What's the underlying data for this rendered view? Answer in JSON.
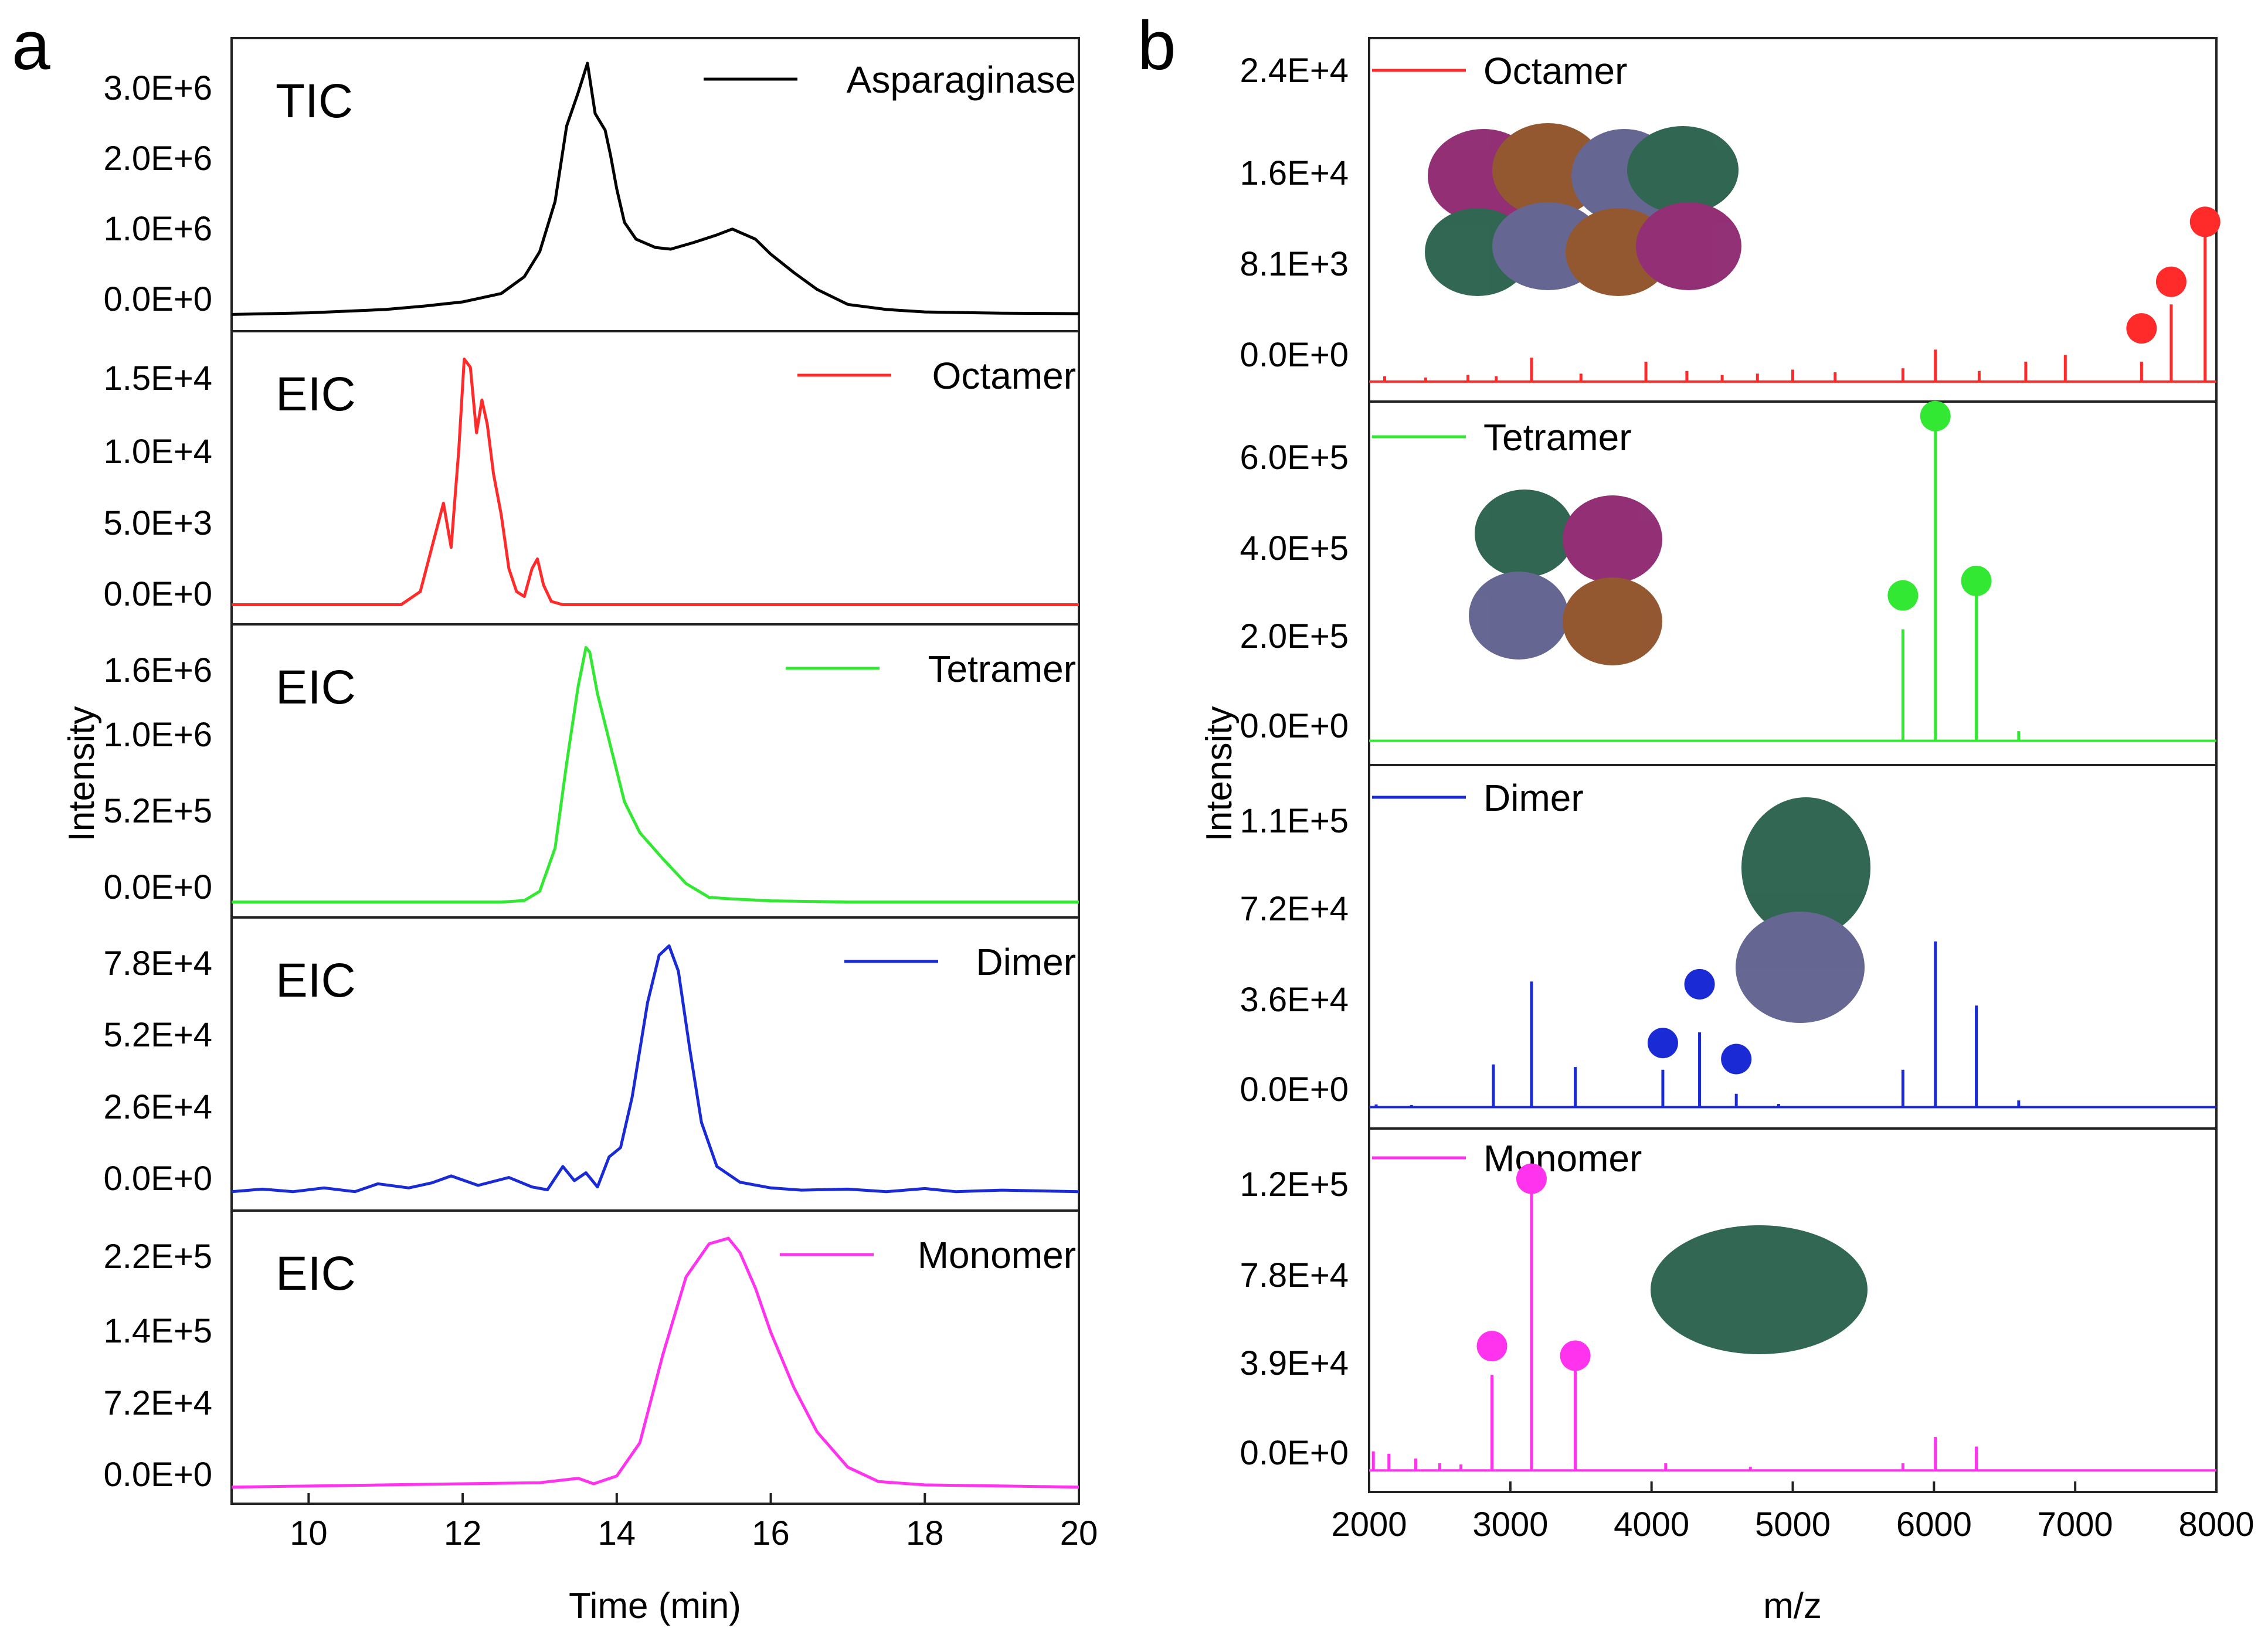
{
  "panels": [
    {
      "letter": "a",
      "x_axis": {
        "label": "Time (min)",
        "range": [
          9,
          20
        ],
        "ticks": [
          "10",
          "12",
          "14",
          "16",
          "18",
          "20"
        ],
        "tick_values": [
          10,
          12,
          14,
          16,
          18,
          20
        ]
      },
      "y_axis": {
        "label": "Intensity"
      },
      "subplots": [
        {
          "trace_label": "TIC",
          "legend": "Asparaginase",
          "color": "#000000",
          "yticks": [
            "3.0E+6",
            "2.0E+6",
            "1.0E+6",
            "0.0E+0"
          ]
        },
        {
          "trace_label": "EIC",
          "legend": "Octamer",
          "color": "#ff2a2a",
          "yticks": [
            "1.5E+4",
            "1.0E+4",
            "5.0E+3",
            "0.0E+0"
          ]
        },
        {
          "trace_label": "EIC",
          "legend": "Tetramer",
          "color": "#33e833",
          "yticks": [
            "1.6E+6",
            "1.0E+6",
            "5.2E+5",
            "0.0E+0"
          ]
        },
        {
          "trace_label": "EIC",
          "legend": "Dimer",
          "color": "#1a2bd6",
          "yticks": [
            "7.8E+4",
            "5.2E+4",
            "2.6E+4",
            "0.0E+0"
          ]
        },
        {
          "trace_label": "EIC",
          "legend": "Monomer",
          "color": "#ff33ee",
          "yticks": [
            "2.2E+5",
            "1.4E+5",
            "7.2E+4",
            "0.0E+0"
          ]
        }
      ]
    },
    {
      "letter": "b",
      "x_axis": {
        "label": "m/z",
        "range": [
          2000,
          8000
        ],
        "ticks": [
          "2000",
          "3000",
          "4000",
          "5000",
          "6000",
          "7000",
          "8000"
        ],
        "tick_values": [
          2000,
          3000,
          4000,
          5000,
          6000,
          7000,
          8000
        ]
      },
      "y_axis": {
        "label": "Intensity"
      },
      "subplots": [
        {
          "legend": "Octamer",
          "color": "#ff2a2a",
          "yticks": [
            "2.4E+4",
            "1.6E+4",
            "8.1E+3",
            "0.0E+0"
          ]
        },
        {
          "legend": "Tetramer",
          "color": "#33e833",
          "yticks": [
            "6.0E+5",
            "4.0E+5",
            "2.0E+5",
            "0.0E+0"
          ]
        },
        {
          "legend": "Dimer",
          "color": "#1a2bd6",
          "yticks": [
            "1.1E+5",
            "7.2E+4",
            "3.6E+4",
            "0.0E+0"
          ]
        },
        {
          "legend": "Monomer",
          "color": "#ff33ee",
          "yticks": [
            "1.2E+5",
            "7.8E+4",
            "3.9E+4",
            "0.0E+0"
          ]
        }
      ]
    }
  ],
  "chart_data": [
    {
      "type": "line",
      "panel": "a",
      "xlabel": "Time (min)",
      "ylabel": "Intensity",
      "xlim": [
        9,
        20
      ],
      "series": [
        {
          "name": "Asparaginase",
          "trace_label": "TIC",
          "ylim": [
            -200000,
            3300000
          ],
          "x": [
            9,
            10,
            11,
            11.5,
            12,
            12.5,
            12.8,
            13,
            13.2,
            13.35,
            13.5,
            13.62,
            13.72,
            13.85,
            13.92,
            14,
            14.1,
            14.25,
            14.5,
            14.7,
            15,
            15.3,
            15.5,
            15.8,
            16,
            16.3,
            16.6,
            17,
            17.5,
            18,
            19,
            20
          ],
          "y": [
            0,
            20000,
            60000,
            100000,
            150000,
            250000,
            450000,
            750000,
            1350000,
            2250000,
            2650000,
            3000000,
            2400000,
            2200000,
            1900000,
            1500000,
            1100000,
            900000,
            800000,
            780000,
            860000,
            950000,
            1020000,
            900000,
            720000,
            500000,
            300000,
            120000,
            60000,
            30000,
            15000,
            10000
          ]
        },
        {
          "name": "Octamer",
          "trace_label": "EIC",
          "ylim": [
            -1200,
            16700
          ],
          "x": [
            9,
            11.2,
            11.45,
            11.6,
            11.75,
            11.85,
            11.95,
            12.02,
            12.1,
            12.18,
            12.25,
            12.32,
            12.4,
            12.5,
            12.6,
            12.7,
            12.8,
            12.9,
            12.97,
            13.05,
            13.15,
            13.3,
            20
          ],
          "y": [
            0,
            0,
            800,
            3500,
            6200,
            3500,
            9500,
            15000,
            14500,
            10500,
            12500,
            11000,
            8000,
            5500,
            2200,
            800,
            500,
            2200,
            2800,
            1200,
            200,
            0,
            0
          ]
        },
        {
          "name": "Tetramer",
          "trace_label": "EIC",
          "ylim": [
            -100000,
            1800000
          ],
          "x": [
            9,
            12.5,
            12.8,
            13,
            13.2,
            13.35,
            13.5,
            13.6,
            13.65,
            13.75,
            13.9,
            14.1,
            14.3,
            14.6,
            14.9,
            15.2,
            15.5,
            16,
            17,
            20
          ],
          "y": [
            0,
            0,
            10000,
            70000,
            350000,
            900000,
            1400000,
            1650000,
            1620000,
            1350000,
            1050000,
            650000,
            450000,
            280000,
            120000,
            30000,
            20000,
            8000,
            0,
            0
          ]
        },
        {
          "name": "Dimer",
          "trace_label": "EIC",
          "ylim": [
            -6000,
            87000
          ],
          "x": [
            9,
            9.4,
            9.8,
            10.2,
            10.6,
            10.9,
            11.3,
            11.6,
            11.85,
            12.2,
            12.6,
            12.9,
            13.1,
            13.3,
            13.45,
            13.6,
            13.75,
            13.9,
            14.05,
            14.2,
            14.4,
            14.55,
            14.68,
            14.8,
            14.95,
            15.1,
            15.3,
            15.6,
            16,
            16.4,
            17,
            17.5,
            18,
            18.4,
            19,
            20
          ],
          "y": [
            0,
            800,
            0,
            1200,
            0,
            2500,
            1200,
            2800,
            5000,
            2000,
            4500,
            1500,
            600,
            8000,
            3500,
            6000,
            1500,
            11000,
            14000,
            30000,
            60000,
            75000,
            78000,
            70000,
            45000,
            22000,
            8000,
            3000,
            1200,
            500,
            800,
            0,
            1000,
            0,
            500,
            0
          ]
        },
        {
          "name": "Monomer",
          "trace_label": "EIC",
          "ylim": [
            -15000,
            250000
          ],
          "x": [
            9,
            11,
            12,
            13,
            13.5,
            13.7,
            14,
            14.3,
            14.6,
            14.9,
            15.2,
            15.45,
            15.6,
            15.8,
            16,
            16.3,
            16.6,
            17,
            17.4,
            18,
            19,
            20
          ],
          "y": [
            0,
            2000,
            3000,
            4000,
            8000,
            3000,
            10000,
            40000,
            120000,
            190000,
            220000,
            225000,
            212000,
            180000,
            140000,
            90000,
            50000,
            18000,
            5000,
            2000,
            1000,
            0
          ]
        }
      ]
    },
    {
      "type": "line",
      "panel": "b",
      "xlabel": "m/z",
      "ylabel": "Intensity",
      "xlim": [
        2000,
        8000
      ],
      "series": [
        {
          "name": "Octamer",
          "ylim": [
            -1500,
            25800
          ],
          "peaks_x": [
            2110,
            2400,
            2700,
            2900,
            3150,
            3500,
            3960,
            4250,
            4500,
            4750,
            5000,
            5300,
            5780,
            6010,
            6320,
            6650,
            6930,
            7470,
            7680,
            7920
          ],
          "peaks_y": [
            400,
            300,
            500,
            400,
            1800,
            600,
            1500,
            800,
            500,
            600,
            900,
            700,
            1000,
            2400,
            800,
            1500,
            2000,
            1500,
            5800,
            11000
          ],
          "markers_x": [
            7470,
            7680,
            7920
          ],
          "markers_y": [
            4000,
            7500,
            12000
          ]
        },
        {
          "name": "Tetramer",
          "ylim": [
            -50000,
            700000
          ],
          "peaks_x": [
            5780,
            6010,
            6300,
            6600
          ],
          "peaks_y": [
            230000,
            650000,
            300000,
            20000
          ],
          "markers_x": [
            5780,
            6010,
            6300
          ],
          "markers_y": [
            300000,
            670000,
            330000
          ]
        },
        {
          "name": "Dimer",
          "ylim": [
            -8000,
            128000
          ],
          "peaks_x": [
            2050,
            2300,
            2880,
            3150,
            3460,
            4080,
            4340,
            4600,
            4900,
            5780,
            6010,
            6300,
            6600
          ],
          "peaks_y": [
            1000,
            800,
            16000,
            47000,
            15000,
            14000,
            28000,
            5000,
            1200,
            14000,
            62000,
            38000,
            2500
          ],
          "markers_x": [
            4080,
            4340,
            4600
          ],
          "markers_y": [
            24000,
            46000,
            18000
          ]
        },
        {
          "name": "Monomer",
          "ylim": [
            -9000,
            143000
          ],
          "peaks_x": [
            2030,
            2140,
            2330,
            2500,
            2650,
            2870,
            3150,
            3460,
            4100,
            4700,
            5780,
            6010,
            6300
          ],
          "peaks_y": [
            8000,
            7000,
            5000,
            3000,
            2500,
            40000,
            120000,
            45000,
            3000,
            1500,
            3000,
            14000,
            10000
          ],
          "markers_x": [
            2870,
            3150,
            3460
          ],
          "markers_y": [
            52000,
            122000,
            48000
          ]
        }
      ]
    }
  ]
}
